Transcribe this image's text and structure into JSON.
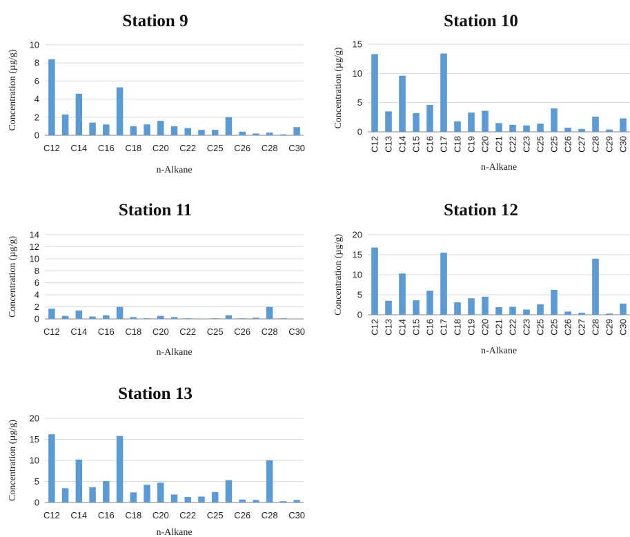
{
  "colors": {
    "bar": "#5b9bd5",
    "grid": "#d9d9d9"
  },
  "chart_data": [
    {
      "type": "bar",
      "title": "Station 9",
      "xlabel": "n-Alkane",
      "ylabel": "Concentration (µg/g)",
      "ylim": [
        0,
        10
      ],
      "yticks": [
        0,
        2,
        4,
        6,
        8,
        10
      ],
      "categories": [
        "C12",
        "C13",
        "C14",
        "C15",
        "C16",
        "C17",
        "C18",
        "C19",
        "C20",
        "C21",
        "C22",
        "C23",
        "C25",
        "C25",
        "C26",
        "C27",
        "C28",
        "C29",
        "C30"
      ],
      "shown_tick_labels": [
        "C12",
        "C14",
        "C16",
        "C18",
        "C20",
        "C22",
        "C25",
        "C26",
        "C28",
        "C30"
      ],
      "values": [
        8.4,
        2.3,
        4.6,
        1.4,
        1.2,
        5.3,
        1.0,
        1.2,
        1.6,
        1.0,
        0.8,
        0.6,
        0.6,
        2.0,
        0.4,
        0.2,
        0.3,
        0.1,
        0.9
      ],
      "grid": true
    },
    {
      "type": "bar",
      "title": "Station 10",
      "xlabel": "n-Alkane",
      "ylabel": "Concentration (µg/g)",
      "ylim": [
        0,
        15
      ],
      "yticks": [
        0,
        5,
        10,
        15
      ],
      "categories": [
        "C12",
        "C13",
        "C14",
        "C15",
        "C16",
        "C17",
        "C18",
        "C19",
        "C20",
        "C21",
        "C22",
        "C23",
        "C25",
        "C25",
        "C26",
        "C27",
        "C28",
        "C29",
        "C30"
      ],
      "shown_tick_labels": [
        "C12",
        "C13",
        "C14",
        "C15",
        "C16",
        "C17",
        "C18",
        "C19",
        "C20",
        "C21",
        "C22",
        "C23",
        "C25",
        "C25",
        "C26",
        "C27",
        "C28",
        "C29",
        "C30"
      ],
      "values": [
        13.3,
        3.5,
        9.6,
        3.2,
        4.6,
        13.4,
        1.8,
        3.3,
        3.6,
        1.5,
        1.2,
        1.1,
        1.4,
        4.0,
        0.7,
        0.5,
        2.6,
        0.4,
        2.3
      ],
      "grid": true
    },
    {
      "type": "bar",
      "title": "Station 11",
      "xlabel": "n-Alkane",
      "ylabel": "Concentration (µg/g)",
      "ylim": [
        0,
        14
      ],
      "yticks": [
        0,
        2,
        4,
        6,
        8,
        10,
        12,
        14
      ],
      "categories": [
        "C12",
        "C13",
        "C14",
        "C15",
        "C16",
        "C17",
        "C18",
        "C19",
        "C20",
        "C21",
        "C22",
        "C23",
        "C25",
        "C25",
        "C26",
        "C27",
        "C28",
        "C29",
        "C30"
      ],
      "shown_tick_labels": [
        "C12",
        "C14",
        "C16",
        "C18",
        "C20",
        "C22",
        "C25",
        "C26",
        "C28",
        "C30"
      ],
      "values": [
        1.7,
        0.5,
        1.4,
        0.4,
        0.6,
        2.0,
        0.3,
        0.1,
        0.5,
        0.3,
        0.1,
        0.05,
        0.1,
        0.6,
        0.1,
        0.2,
        2.0,
        0.1,
        0.05
      ],
      "grid": true
    },
    {
      "type": "bar",
      "title": "Station 12",
      "xlabel": "n-Alkane",
      "ylabel": "Concentration (µg/g)",
      "ylim": [
        0,
        20
      ],
      "yticks": [
        0,
        5,
        10,
        15,
        20
      ],
      "categories": [
        "C12",
        "C13",
        "C14",
        "C15",
        "C16",
        "C17",
        "C18",
        "C19",
        "C20",
        "C21",
        "C22",
        "C23",
        "C25",
        "C25",
        "C26",
        "C27",
        "C28",
        "C29",
        "C30"
      ],
      "shown_tick_labels": [
        "C12",
        "C13",
        "C14",
        "C15",
        "C16",
        "C17",
        "C18",
        "C19",
        "C20",
        "C21",
        "C22",
        "C23",
        "C25",
        "C25",
        "C26",
        "C27",
        "C28",
        "C29",
        "C30"
      ],
      "values": [
        16.8,
        3.5,
        10.3,
        3.6,
        6.0,
        15.5,
        3.1,
        4.1,
        4.5,
        1.9,
        2.0,
        1.3,
        2.6,
        6.2,
        0.8,
        0.5,
        14.0,
        0.3,
        2.8
      ],
      "grid": true
    },
    {
      "type": "bar",
      "title": "Station 13",
      "xlabel": "n-Alkane",
      "ylabel": "Concentration (µg/g)",
      "ylim": [
        0,
        20
      ],
      "yticks": [
        0,
        5,
        10,
        15,
        20
      ],
      "categories": [
        "C12",
        "C13",
        "C14",
        "C15",
        "C16",
        "C17",
        "C18",
        "C19",
        "C20",
        "C21",
        "C22",
        "C23",
        "C25",
        "C25",
        "C26",
        "C27",
        "C28",
        "C29",
        "C30"
      ],
      "shown_tick_labels": [
        "C12",
        "C14",
        "C16",
        "C18",
        "C20",
        "C22",
        "C25",
        "C26",
        "C28",
        "C30"
      ],
      "values": [
        16.2,
        3.4,
        10.2,
        3.6,
        5.1,
        15.8,
        2.4,
        4.2,
        4.7,
        1.9,
        1.3,
        1.4,
        2.5,
        5.3,
        0.7,
        0.6,
        10.0,
        0.3,
        0.6
      ],
      "grid": true
    }
  ]
}
